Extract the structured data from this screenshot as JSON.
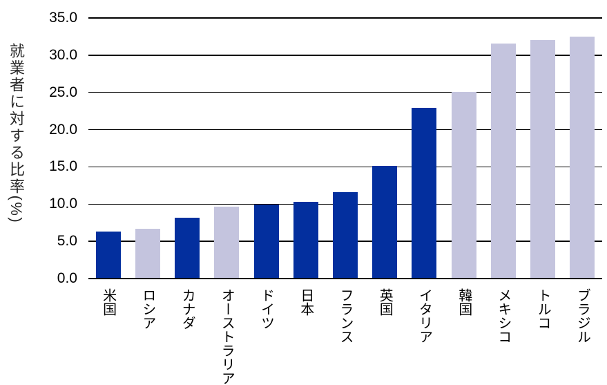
{
  "page": {
    "background": "#ffffff"
  },
  "chart_data": {
    "type": "bar",
    "title": "",
    "xlabel": "",
    "ylabel": "就業者に対する比率(%)",
    "ylim": [
      0,
      35
    ],
    "ytick_step": 5,
    "ytick_labels": [
      "0.0",
      "5.0",
      "10.0",
      "15.0",
      "20.0",
      "25.0",
      "30.0",
      "35.0"
    ],
    "grid": true,
    "legend_position": "none",
    "categories": [
      "米国",
      "ロシア",
      "カナダ",
      "オーストラリア",
      "ドイツ",
      "日本",
      "フランス",
      "英国",
      "イタリア",
      "韓国",
      "メキシコ",
      "トルコ",
      "ブラジル"
    ],
    "values": [
      6.3,
      6.7,
      8.2,
      9.7,
      9.9,
      10.3,
      11.6,
      15.1,
      22.9,
      25.1,
      31.6,
      32.0,
      32.5
    ],
    "bar_color_keys": [
      "dark",
      "light",
      "dark",
      "light",
      "dark",
      "dark",
      "dark",
      "dark",
      "dark",
      "light",
      "light",
      "light",
      "light"
    ],
    "colors": {
      "dark": "#032F9E",
      "light": "#C4C4DE",
      "gridline": "#000000",
      "text": "#000000"
    }
  }
}
